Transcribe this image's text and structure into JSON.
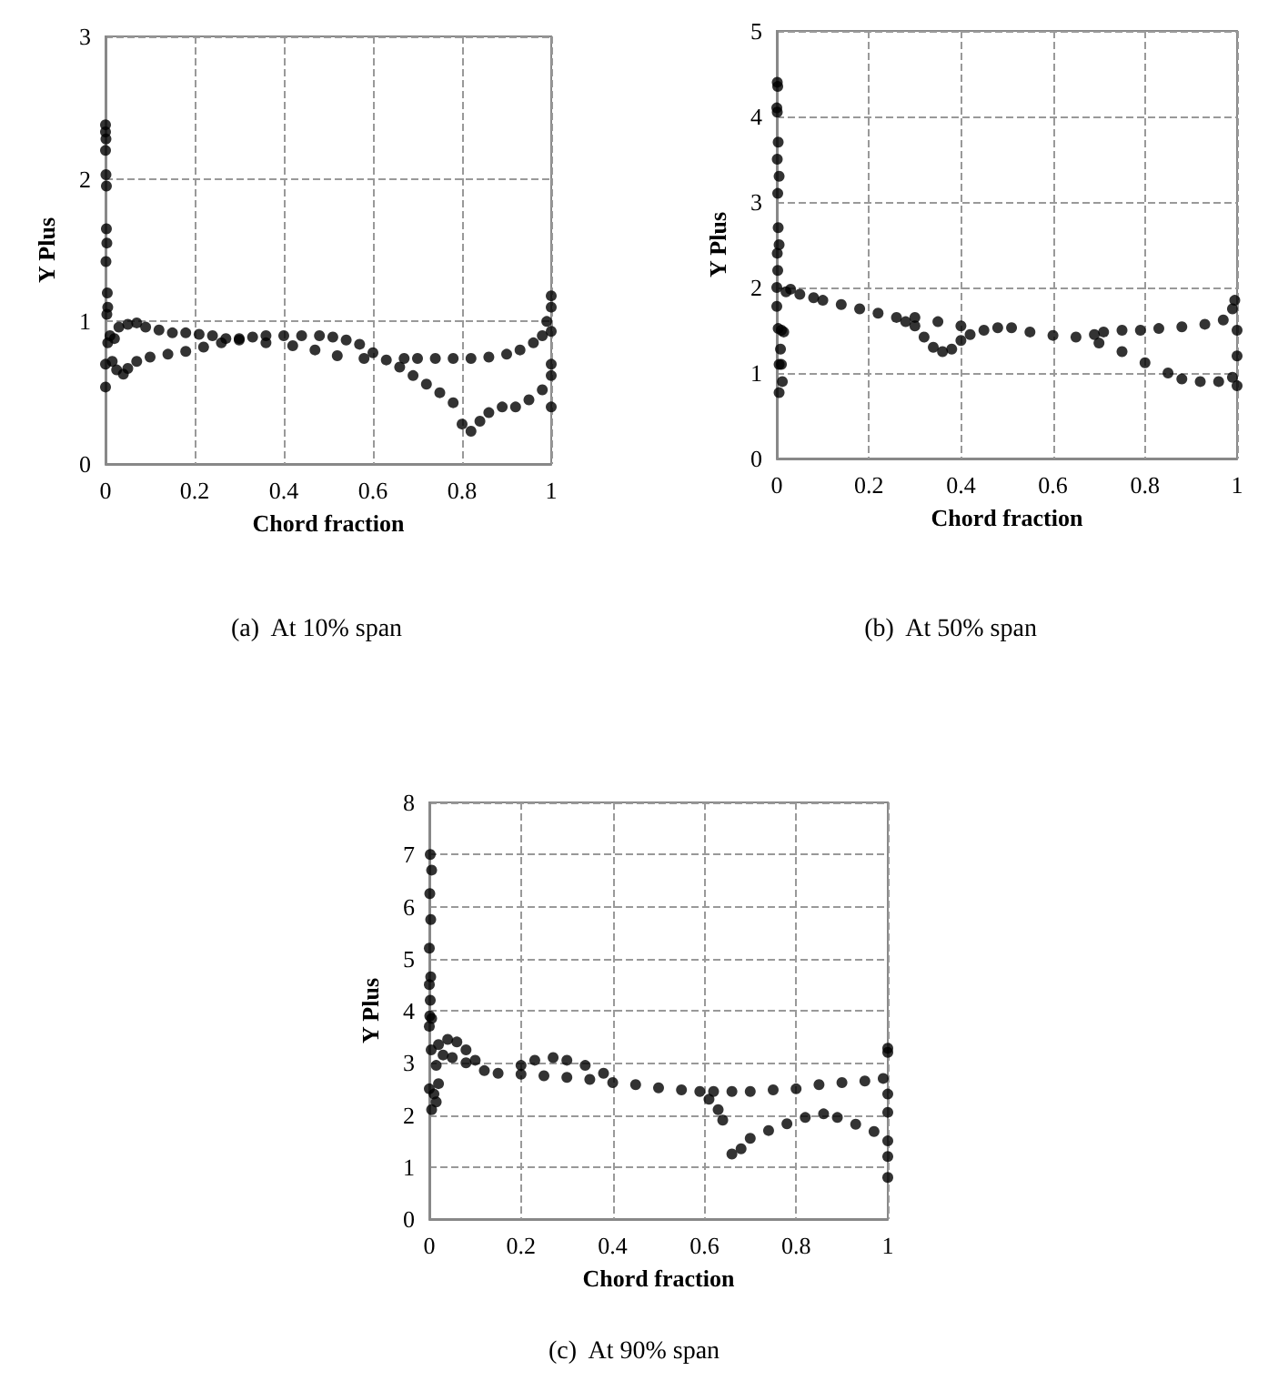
{
  "chart_data": [
    {
      "type": "scatter",
      "title": "(a)  At 10% span",
      "xlabel": "Chord fraction",
      "ylabel": "Y Plus",
      "xlim": [
        0,
        1
      ],
      "ylim": [
        0,
        3
      ],
      "xticks": [
        0,
        0.2,
        0.4,
        0.6,
        0.8,
        1
      ],
      "yticks": [
        0,
        1,
        2,
        3
      ],
      "grid": true,
      "marker": "circle",
      "series": [
        {
          "color": "#000000",
          "x": [
            0,
            0,
            0.001,
            0,
            0.001,
            0.002,
            0.002,
            0.003,
            0.001,
            0.004,
            0.005,
            0.003,
            0,
            0,
            0.005,
            0.01,
            0.02,
            0.015,
            0.025,
            0.04,
            0.05,
            0.03,
            0.05,
            0.07,
            0.09,
            0.12,
            0.15,
            0.18,
            0.21,
            0.24,
            0.27,
            0.3,
            0.33,
            0.36,
            0.4,
            0.44,
            0.48,
            0.51,
            0.54,
            0.57,
            0.6,
            0.63,
            0.66,
            0.69,
            0.72,
            0.75,
            0.78,
            0.8,
            0.82,
            0.84,
            0.86,
            0.89,
            0.92,
            0.95,
            0.98,
            1,
            1,
            1,
            1,
            1,
            0.99,
            0.98,
            0.96,
            0.93,
            0.9,
            0.86,
            0.82,
            0.78,
            0.74,
            0.7,
            0.67,
            0.07,
            0.1,
            0.14,
            0.18,
            0.22,
            0.26,
            0.3,
            0.36,
            0.42,
            0.47,
            0.52,
            0.58,
            1
          ],
          "values": [
            2.38,
            2.33,
            2.28,
            2.2,
            2.03,
            1.95,
            1.65,
            1.55,
            1.42,
            1.2,
            1.1,
            1.05,
            0.54,
            0.7,
            0.85,
            0.9,
            0.88,
            0.72,
            0.66,
            0.63,
            0.67,
            0.96,
            0.98,
            0.99,
            0.96,
            0.94,
            0.92,
            0.92,
            0.91,
            0.9,
            0.88,
            0.88,
            0.89,
            0.9,
            0.9,
            0.9,
            0.9,
            0.89,
            0.87,
            0.84,
            0.78,
            0.73,
            0.68,
            0.62,
            0.56,
            0.5,
            0.43,
            0.28,
            0.23,
            0.3,
            0.36,
            0.4,
            0.4,
            0.45,
            0.52,
            0.62,
            0.7,
            0.4,
            1.18,
            1.1,
            1.0,
            0.9,
            0.85,
            0.8,
            0.77,
            0.75,
            0.74,
            0.74,
            0.74,
            0.74,
            0.74,
            0.72,
            0.75,
            0.77,
            0.79,
            0.82,
            0.85,
            0.87,
            0.85,
            0.83,
            0.8,
            0.76,
            0.74,
            0.93
          ]
        }
      ]
    },
    {
      "type": "scatter",
      "title": "(b)  At 50% span",
      "xlabel": "Chord fraction",
      "ylabel": "Y Plus",
      "xlim": [
        0,
        1
      ],
      "ylim": [
        0,
        5
      ],
      "xticks": [
        0,
        0.2,
        0.4,
        0.6,
        0.8,
        1
      ],
      "yticks": [
        0,
        1,
        2,
        3,
        4,
        5
      ],
      "grid": true,
      "marker": "circle",
      "series": [
        {
          "color": "#000000",
          "x": [
            0.001,
            0.002,
            0,
            0.001,
            0.003,
            0.001,
            0.002,
            0.005,
            0.003,
            0.005,
            0.001,
            0.002,
            0,
            0,
            0.003,
            0.01,
            0.015,
            0.005,
            0.01,
            0.008,
            0.012,
            0.005,
            0.02,
            0.03,
            0.05,
            0.08,
            0.1,
            0.14,
            0.18,
            0.22,
            0.26,
            0.28,
            0.3,
            0.32,
            0.34,
            0.36,
            0.38,
            0.4,
            0.42,
            0.45,
            0.48,
            0.51,
            0.55,
            0.6,
            0.65,
            0.7,
            0.75,
            0.8,
            0.85,
            0.88,
            0.92,
            0.96,
            0.99,
            1,
            1,
            1,
            0.995,
            0.99,
            0.97,
            0.93,
            0.88,
            0.83,
            0.79,
            0.75,
            0.71,
            0.69,
            0.3,
            0.35,
            0.4
          ],
          "values": [
            4.4,
            4.35,
            4.1,
            4.05,
            3.7,
            3.5,
            3.1,
            3.3,
            2.7,
            2.5,
            2.4,
            2.2,
            2.0,
            1.78,
            1.52,
            1.5,
            1.48,
            1.1,
            1.1,
            1.28,
            0.9,
            0.77,
            1.95,
            1.98,
            1.92,
            1.88,
            1.85,
            1.8,
            1.75,
            1.7,
            1.65,
            1.6,
            1.55,
            1.42,
            1.3,
            1.25,
            1.28,
            1.38,
            1.45,
            1.5,
            1.53,
            1.53,
            1.48,
            1.44,
            1.42,
            1.35,
            1.25,
            1.12,
            1.0,
            0.93,
            0.9,
            0.9,
            0.95,
            0.85,
            1.2,
            1.5,
            1.85,
            1.75,
            1.62,
            1.57,
            1.54,
            1.52,
            1.5,
            1.5,
            1.48,
            1.45,
            1.65,
            1.6,
            1.55
          ]
        }
      ]
    },
    {
      "type": "scatter",
      "title": "(c)  At 90% span",
      "xlabel": "Chord fraction",
      "ylabel": "Y Plus",
      "xlim": [
        0,
        1
      ],
      "ylim": [
        0,
        8
      ],
      "xticks": [
        0,
        0.2,
        0.4,
        0.6,
        0.8,
        1
      ],
      "yticks": [
        0,
        1,
        2,
        3,
        4,
        5,
        6,
        7,
        8
      ],
      "grid": true,
      "marker": "circle",
      "series": [
        {
          "color": "#000000",
          "x": [
            0.002,
            0.005,
            0.001,
            0.003,
            0,
            0.003,
            0,
            0.002,
            0.001,
            0.005,
            0,
            0.004,
            0,
            0.01,
            0.005,
            0.015,
            0.02,
            0.015,
            0.02,
            0.03,
            0.04,
            0.06,
            0.08,
            0.1,
            0.05,
            0.08,
            0.12,
            0.15,
            0.2,
            0.23,
            0.27,
            0.3,
            0.34,
            0.38,
            0.2,
            0.25,
            0.3,
            0.35,
            0.4,
            0.45,
            0.5,
            0.55,
            0.59,
            0.61,
            0.63,
            0.64,
            0.66,
            0.68,
            0.7,
            0.74,
            0.78,
            0.82,
            0.86,
            0.89,
            0.93,
            0.97,
            1,
            1,
            1,
            1,
            1,
            1,
            1,
            0.99,
            0.95,
            0.9,
            0.85,
            0.8,
            0.75,
            0.7,
            0.66,
            0.62
          ],
          "values": [
            7.0,
            6.7,
            6.25,
            5.75,
            5.2,
            4.65,
            4.5,
            4.2,
            3.9,
            3.85,
            3.7,
            3.25,
            2.5,
            2.4,
            2.1,
            2.25,
            2.6,
            2.95,
            3.35,
            3.15,
            3.45,
            3.4,
            3.25,
            3.05,
            3.1,
            3.0,
            2.85,
            2.8,
            2.95,
            3.05,
            3.1,
            3.05,
            2.95,
            2.8,
            2.78,
            2.75,
            2.72,
            2.68,
            2.62,
            2.58,
            2.52,
            2.48,
            2.45,
            2.3,
            2.1,
            1.9,
            1.25,
            1.35,
            1.55,
            1.7,
            1.83,
            1.95,
            2.02,
            1.95,
            1.82,
            1.68,
            1.5,
            1.2,
            0.8,
            2.05,
            2.4,
            3.2,
            3.28,
            2.7,
            2.65,
            2.62,
            2.58,
            2.5,
            2.48,
            2.45,
            2.45,
            2.45
          ]
        }
      ]
    }
  ]
}
